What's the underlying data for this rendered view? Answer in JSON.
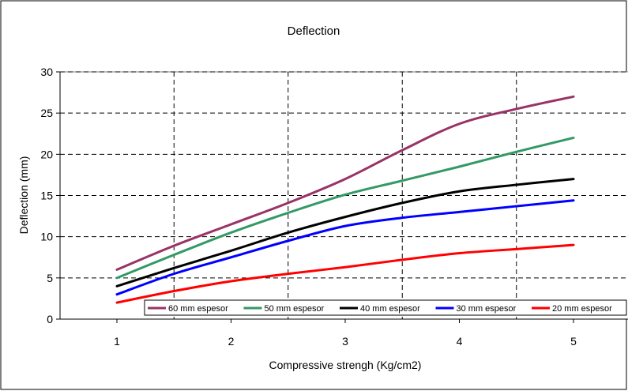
{
  "chart_data": {
    "type": "line",
    "title": "Deflection",
    "xlabel": "Compressive strengh (Kg/cm2)",
    "ylabel": "Deflection (mm)",
    "x": [
      1,
      1.5,
      2,
      2.5,
      3,
      3.5,
      4,
      4.5,
      5
    ],
    "xticks": [
      "1",
      "2",
      "3",
      "4",
      "5"
    ],
    "yticks": [
      "0",
      "5",
      "10",
      "15",
      "20",
      "25",
      "30"
    ],
    "xlim": [
      0.5,
      5.5
    ],
    "ylim": [
      0,
      30
    ],
    "grid": true,
    "legend_position": "bottom-inside",
    "series": [
      {
        "name": "60 mm espesor",
        "color": "#993366",
        "values": [
          6,
          8.9,
          11.5,
          14.1,
          17.0,
          20.5,
          23.7,
          25.5,
          27
        ]
      },
      {
        "name": "50 mm espesor",
        "color": "#339966",
        "values": [
          5,
          7.8,
          10.5,
          12.9,
          15.1,
          16.8,
          18.5,
          20.3,
          22
        ]
      },
      {
        "name": "40 mm espesor",
        "color": "#000000",
        "values": [
          4,
          6.2,
          8.3,
          10.5,
          12.4,
          14.1,
          15.5,
          16.3,
          17
        ]
      },
      {
        "name": "30 mm espesor",
        "color": "#0000ff",
        "values": [
          3,
          5.5,
          7.5,
          9.5,
          11.3,
          12.3,
          13.0,
          13.7,
          14.4
        ]
      },
      {
        "name": "20 mm espesor",
        "color": "#ff0000",
        "values": [
          2,
          3.4,
          4.6,
          5.5,
          6.3,
          7.2,
          8.0,
          8.5,
          9
        ]
      }
    ]
  }
}
